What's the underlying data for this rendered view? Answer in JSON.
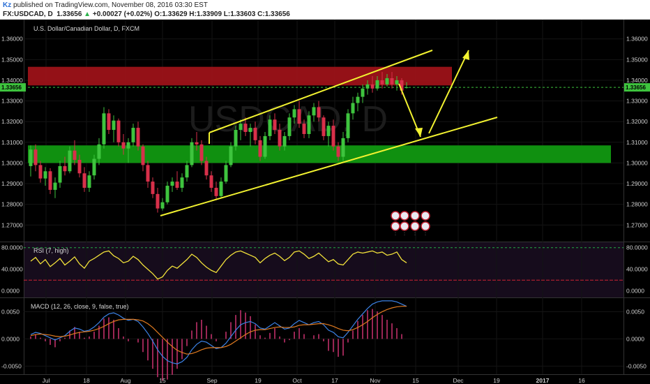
{
  "header": {
    "author": "Kz",
    "published": "published on TradingView.com, November 08, 2016 03:30 EST",
    "symbol": "FX:USDCAD, D",
    "last": "1.33656",
    "change": "+0.00027 (+0.02%)",
    "ohlc": "O:1.33629 H:1.33909 L:1.33603 C:1.33656",
    "colors": {
      "up": "#2bb24c",
      "link": "#2a6fd6"
    }
  },
  "chart_data": [
    {
      "type": "candlestick",
      "title": "U.S. Dollar/Canadian Dollar, D, FXCM",
      "watermark": "USDCAD, D",
      "y_ticks": [
        "1.36000",
        "1.35000",
        "1.34000",
        "1.33000",
        "1.32000",
        "1.31000",
        "1.30000",
        "1.29000",
        "1.28000",
        "1.27000"
      ],
      "ylim": [
        1.262,
        1.368
      ],
      "last_price_label": "1.33656",
      "x_ticks": [
        "Jul",
        "18",
        "Aug",
        "15",
        "Sep",
        "19",
        "Oct",
        "17",
        "Nov",
        "15",
        "Dec",
        "19",
        "2017",
        "16"
      ],
      "colors": {
        "up": "#3ec43e",
        "down": "#d8304a",
        "lines": "#f2f230",
        "resistance": "#a4131a",
        "support": "#12a012"
      },
      "zones": [
        {
          "name": "resistance",
          "from": 1.3375,
          "to": 1.3465
        },
        {
          "name": "support",
          "from": 1.3,
          "to": 1.3085
        }
      ],
      "candles_ohlc": [
        [
          1.2985,
          1.3085,
          1.2935,
          1.3065
        ],
        [
          1.3065,
          1.309,
          1.296,
          1.299
        ],
        [
          1.299,
          1.301,
          1.2905,
          1.2925
        ],
        [
          1.2925,
          1.298,
          1.289,
          1.296
        ],
        [
          1.296,
          1.2975,
          1.285,
          1.287
        ],
        [
          1.287,
          1.293,
          1.283,
          1.2905
        ],
        [
          1.2905,
          1.301,
          1.288,
          1.2985
        ],
        [
          1.2985,
          1.303,
          1.294,
          1.296
        ],
        [
          1.296,
          1.308,
          1.295,
          1.306
        ],
        [
          1.306,
          1.311,
          1.299,
          1.3015
        ],
        [
          1.3015,
          1.304,
          1.293,
          1.295
        ],
        [
          1.295,
          1.298,
          1.286,
          1.288
        ],
        [
          1.288,
          1.296,
          1.286,
          1.294
        ],
        [
          1.294,
          1.304,
          1.292,
          1.302
        ],
        [
          1.302,
          1.312,
          1.299,
          1.309
        ],
        [
          1.309,
          1.327,
          1.307,
          1.324
        ],
        [
          1.324,
          1.326,
          1.314,
          1.316
        ],
        [
          1.316,
          1.323,
          1.31,
          1.3205
        ],
        [
          1.3205,
          1.3215,
          1.308,
          1.31
        ],
        [
          1.31,
          1.314,
          1.304,
          1.307
        ],
        [
          1.307,
          1.312,
          1.3,
          1.31
        ],
        [
          1.31,
          1.319,
          1.308,
          1.317
        ],
        [
          1.317,
          1.32,
          1.306,
          1.308
        ],
        [
          1.308,
          1.309,
          1.296,
          1.299
        ],
        [
          1.299,
          1.301,
          1.288,
          1.291
        ],
        [
          1.291,
          1.293,
          1.283,
          1.285
        ],
        [
          1.285,
          1.288,
          1.276,
          1.278
        ],
        [
          1.278,
          1.283,
          1.277,
          1.281
        ],
        [
          1.281,
          1.291,
          1.28,
          1.289
        ],
        [
          1.289,
          1.293,
          1.286,
          1.291
        ],
        [
          1.291,
          1.296,
          1.287,
          1.288
        ],
        [
          1.288,
          1.295,
          1.286,
          1.293
        ],
        [
          1.293,
          1.301,
          1.291,
          1.299
        ],
        [
          1.299,
          1.312,
          1.298,
          1.31
        ],
        [
          1.31,
          1.315,
          1.306,
          1.309
        ],
        [
          1.309,
          1.311,
          1.299,
          1.301
        ],
        [
          1.301,
          1.303,
          1.292,
          1.294
        ],
        [
          1.294,
          1.296,
          1.286,
          1.288
        ],
        [
          1.288,
          1.291,
          1.282,
          1.284
        ],
        [
          1.284,
          1.293,
          1.283,
          1.291
        ],
        [
          1.291,
          1.301,
          1.29,
          1.299
        ],
        [
          1.299,
          1.31,
          1.298,
          1.308
        ],
        [
          1.308,
          1.318,
          1.306,
          1.316
        ],
        [
          1.316,
          1.321,
          1.311,
          1.319
        ],
        [
          1.319,
          1.322,
          1.313,
          1.315
        ],
        [
          1.315,
          1.319,
          1.308,
          1.317
        ],
        [
          1.317,
          1.32,
          1.309,
          1.311
        ],
        [
          1.311,
          1.313,
          1.301,
          1.303
        ],
        [
          1.303,
          1.315,
          1.302,
          1.313
        ],
        [
          1.313,
          1.323,
          1.311,
          1.321
        ],
        [
          1.321,
          1.324,
          1.314,
          1.316
        ],
        [
          1.316,
          1.319,
          1.306,
          1.308
        ],
        [
          1.308,
          1.315,
          1.306,
          1.313
        ],
        [
          1.313,
          1.324,
          1.311,
          1.322
        ],
        [
          1.322,
          1.328,
          1.319,
          1.326
        ],
        [
          1.326,
          1.33,
          1.317,
          1.319
        ],
        [
          1.319,
          1.321,
          1.312,
          1.314
        ],
        [
          1.314,
          1.325,
          1.312,
          1.323
        ],
        [
          1.323,
          1.329,
          1.32,
          1.327
        ],
        [
          1.327,
          1.33,
          1.32,
          1.322
        ],
        [
          1.322,
          1.323,
          1.311,
          1.313
        ],
        [
          1.313,
          1.32,
          1.308,
          1.318
        ],
        [
          1.318,
          1.321,
          1.306,
          1.308
        ],
        [
          1.308,
          1.31,
          1.301,
          1.303
        ],
        [
          1.303,
          1.315,
          1.301,
          1.312
        ],
        [
          1.312,
          1.326,
          1.31,
          1.324
        ],
        [
          1.324,
          1.332,
          1.321,
          1.329
        ],
        [
          1.329,
          1.334,
          1.325,
          1.332
        ],
        [
          1.332,
          1.338,
          1.329,
          1.336
        ],
        [
          1.336,
          1.34,
          1.333,
          1.338
        ],
        [
          1.338,
          1.342,
          1.334,
          1.336
        ],
        [
          1.336,
          1.342,
          1.335,
          1.34
        ],
        [
          1.34,
          1.344,
          1.336,
          1.338
        ],
        [
          1.338,
          1.343,
          1.337,
          1.341
        ],
        [
          1.341,
          1.344,
          1.336,
          1.338
        ],
        [
          1.338,
          1.342,
          1.335,
          1.34
        ],
        [
          1.34,
          1.341,
          1.333,
          1.335
        ],
        [
          1.3363,
          1.3391,
          1.336,
          1.3366
        ]
      ]
    },
    {
      "type": "line",
      "title": "RSI (7, high)",
      "y_ticks": [
        "80.0000",
        "40.0000",
        "0.0000"
      ],
      "ylim": [
        -12,
        90
      ],
      "levels": [
        80,
        20
      ],
      "values": [
        55,
        62,
        50,
        58,
        45,
        52,
        60,
        48,
        55,
        63,
        50,
        42,
        55,
        60,
        66,
        72,
        74,
        65,
        60,
        52,
        55,
        64,
        58,
        48,
        40,
        32,
        22,
        26,
        38,
        46,
        42,
        50,
        58,
        68,
        62,
        52,
        44,
        38,
        34,
        46,
        58,
        66,
        72,
        74,
        70,
        66,
        62,
        52,
        60,
        66,
        70,
        64,
        56,
        62,
        72,
        74,
        68,
        60,
        64,
        70,
        62,
        54,
        58,
        50,
        48,
        58,
        68,
        72,
        70,
        72,
        74,
        70,
        72,
        66,
        68,
        72,
        58,
        52
      ]
    },
    {
      "type": "line",
      "title": "MACD (12, 26, close, 9, false, true)",
      "y_ticks": [
        "0.0050",
        "0.0000",
        "-0.0050"
      ],
      "ylim": [
        -0.0065,
        0.0075
      ],
      "macd": [
        0.0008,
        0.0012,
        0.001,
        0.0006,
        0.0002,
        -0.0002,
        0.0002,
        0.0006,
        0.0014,
        0.002,
        0.0018,
        0.0014,
        0.0016,
        0.0022,
        0.003,
        0.004,
        0.0046,
        0.0048,
        0.0044,
        0.0038,
        0.0034,
        0.0036,
        0.0032,
        0.0022,
        0.001,
        -0.0004,
        -0.002,
        -0.0032,
        -0.004,
        -0.0044,
        -0.0046,
        -0.0042,
        -0.0034,
        -0.002,
        -0.001,
        -0.0004,
        -0.0006,
        -0.0012,
        -0.0018,
        -0.0016,
        -0.0008,
        0.0004,
        0.0016,
        0.0026,
        0.003,
        0.0032,
        0.0028,
        0.002,
        0.0018,
        0.0024,
        0.003,
        0.0024,
        0.0018,
        0.002,
        0.0028,
        0.0034,
        0.003,
        0.0026,
        0.003,
        0.0032,
        0.0026,
        0.0016,
        0.0012,
        0.0004,
        0.0002,
        0.0012,
        0.0024,
        0.0036,
        0.0046,
        0.0056,
        0.0064,
        0.0068,
        0.007,
        0.007,
        0.007,
        0.0068,
        0.0064,
        0.006
      ],
      "signal": [
        0.0006,
        0.0008,
        0.0009,
        0.0008,
        0.0007,
        0.0005,
        0.0004,
        0.0005,
        0.0007,
        0.001,
        0.0012,
        0.0013,
        0.0014,
        0.0016,
        0.0019,
        0.0023,
        0.0028,
        0.0032,
        0.0035,
        0.0036,
        0.0036,
        0.0036,
        0.0035,
        0.0033,
        0.0028,
        0.0021,
        0.0012,
        0.0003,
        -0.0006,
        -0.0014,
        -0.0021,
        -0.0025,
        -0.0028,
        -0.0027,
        -0.0024,
        -0.002,
        -0.0017,
        -0.0016,
        -0.0016,
        -0.0016,
        -0.0014,
        -0.001,
        -0.0004,
        0.0002,
        0.0008,
        0.0013,
        0.0016,
        0.0017,
        0.0017,
        0.0019,
        0.0021,
        0.0022,
        0.0021,
        0.0021,
        0.0022,
        0.0025,
        0.0026,
        0.0026,
        0.0027,
        0.0028,
        0.0028,
        0.0026,
        0.0023,
        0.0019,
        0.0016,
        0.0015,
        0.0017,
        0.0021,
        0.0026,
        0.0032,
        0.0039,
        0.0045,
        0.005,
        0.0054,
        0.0057,
        0.0059,
        0.006,
        0.006
      ]
    }
  ]
}
